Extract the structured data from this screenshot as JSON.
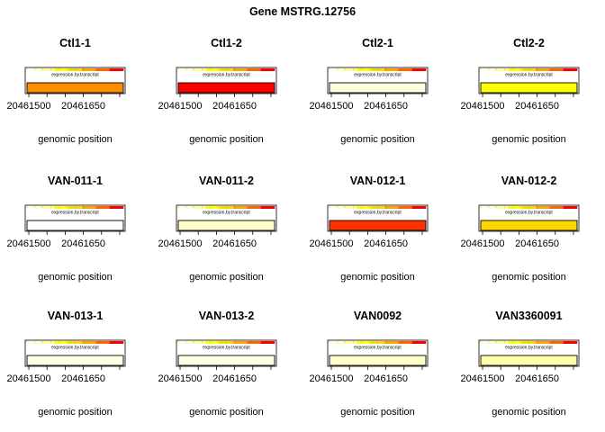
{
  "title": "Gene MSTRG.12756",
  "chart_data": {
    "type": "heatmap",
    "title": "Gene MSTRG.12756",
    "panels": [
      {
        "name": "Ctl1-1",
        "color": "#FF8C00"
      },
      {
        "name": "Ctl1-2",
        "color": "#FF0000"
      },
      {
        "name": "Ctl2-1",
        "color": "#FFFFE0"
      },
      {
        "name": "Ctl2-2",
        "color": "#FFFF00"
      },
      {
        "name": "VAN-011-1",
        "color": "#FFFFFF"
      },
      {
        "name": "VAN-011-2",
        "color": "#FFFFCC"
      },
      {
        "name": "VAN-012-1",
        "color": "#FF3300"
      },
      {
        "name": "VAN-012-2",
        "color": "#FFD700"
      },
      {
        "name": "VAN-013-1",
        "color": "#FFFFE5"
      },
      {
        "name": "VAN-013-2",
        "color": "#FFFFE5"
      },
      {
        "name": "VAN0092",
        "color": "#FFFFCC"
      },
      {
        "name": "VAN3360091",
        "color": "#FFFFAA"
      }
    ],
    "xlabel": "genomic position",
    "xticks": [
      20461500,
      20461650
    ],
    "xtick_labels": [
      "20461500",
      "20461650"
    ],
    "legend_label": "expression.by.transcript",
    "legend_colors": [
      "#FFFFE0",
      "#FFFF99",
      "#FFFF00",
      "#FFD700",
      "#FFA500",
      "#FF6600",
      "#FF0000"
    ]
  }
}
